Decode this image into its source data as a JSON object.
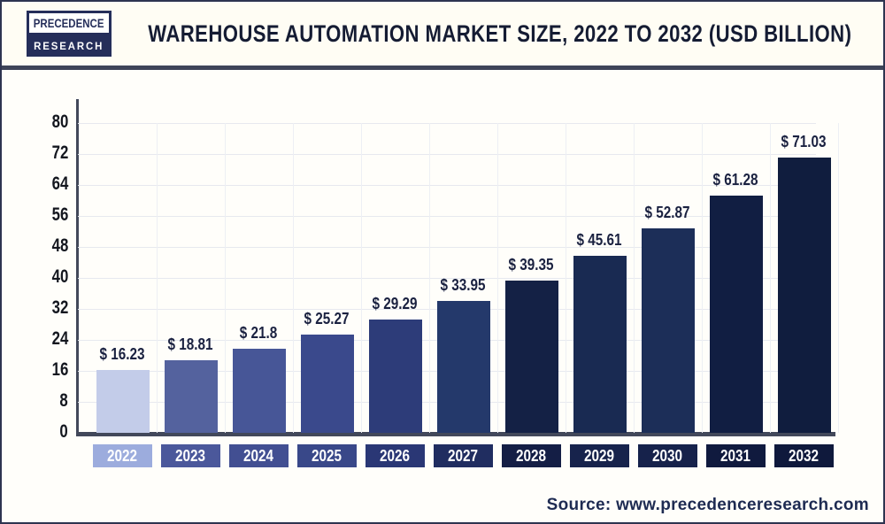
{
  "logo": {
    "line1": "PRECEDENCE",
    "line2": "RESEARCH"
  },
  "header": {
    "title": "WAREHOUSE AUTOMATION MARKET SIZE, 2022 TO 2032 (USD BILLION)"
  },
  "source": {
    "label": "Source: www.precedenceresearch.com"
  },
  "chart_data": {
    "type": "bar",
    "title": "Warehouse Automation Market Size, 2022 to 2032 (USD Billion)",
    "categories": [
      "2022",
      "2023",
      "2024",
      "2025",
      "2026",
      "2027",
      "2028",
      "2029",
      "2030",
      "2031",
      "2032"
    ],
    "values": [
      16.23,
      18.81,
      21.8,
      25.27,
      29.29,
      33.95,
      39.35,
      45.61,
      52.87,
      61.28,
      71.03
    ],
    "value_labels": [
      "$ 16.23",
      "$ 18.81",
      "$ 21.8",
      "$ 25.27",
      "$ 29.29",
      "$ 33.95",
      "$ 39.35",
      "$ 45.61",
      "$ 52.87",
      "$ 61.28",
      "$ 71.03"
    ],
    "ylabel": "",
    "xlabel": "",
    "ylim": [
      0,
      80
    ],
    "yticks": [
      0,
      8,
      16,
      24,
      32,
      40,
      48,
      56,
      64,
      72,
      80
    ],
    "grid": true,
    "legend": "none",
    "bar_colors": [
      "#c3cce9",
      "#54629e",
      "#475697",
      "#3a498c",
      "#2d3c79",
      "#24396b",
      "#142145",
      "#192a52",
      "#1c2e58",
      "#111e42",
      "#101d3e"
    ],
    "label_box_colors": [
      "#9cacdd",
      "#4b589b",
      "#424f92",
      "#394889",
      "#2a3775",
      "#202d60",
      "#141e45",
      "#17234c",
      "#16224b",
      "#101a3e",
      "#0f193c"
    ]
  },
  "style": {
    "axis_color": "#42485a",
    "gridline_color": "#e7e9ef",
    "title_color": "#151c33",
    "value_label_color": "#1a2140"
  }
}
